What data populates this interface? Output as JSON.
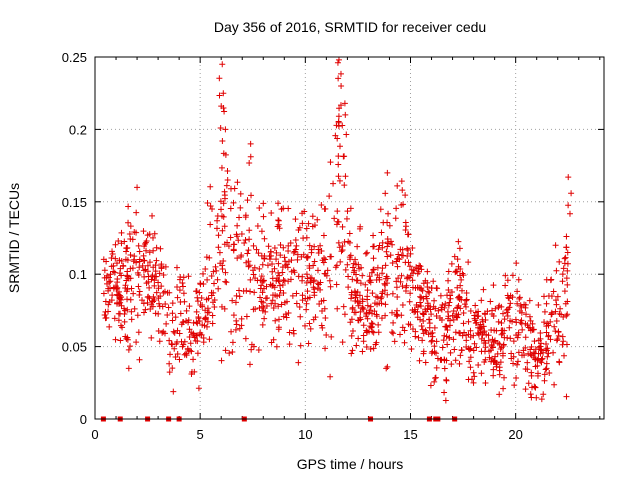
{
  "chart_data": {
    "type": "scatter",
    "title": "Day 356 of 2016, SRMTID for receiver cedu",
    "xlabel": "GPS time / hours",
    "ylabel": "SRMTID / TECUs",
    "xlim": [
      0,
      24.2
    ],
    "ylim": [
      0,
      0.25
    ],
    "xticks": [
      0,
      5,
      10,
      15,
      20
    ],
    "yticks": [
      0,
      0.05,
      0.1,
      0.15,
      0.2,
      0.25
    ],
    "xtick_labels": [
      "0",
      "5",
      "10",
      "15",
      "20"
    ],
    "ytick_labels": [
      "0",
      "0.05",
      "0.1",
      "0.15",
      "0.2",
      "0.25"
    ],
    "grid": true,
    "marker": "+",
    "series_color": "#e00000",
    "zero_values_at_hours": [
      0.4,
      1.2,
      2.5,
      3.5,
      4.0,
      7.1,
      13.1,
      15.9,
      16.2,
      16.3,
      17.1
    ],
    "envelope": [
      {
        "t": 0.5,
        "mean": 0.09,
        "spread": 0.025
      },
      {
        "t": 1.5,
        "mean": 0.095,
        "spread": 0.035
      },
      {
        "t": 2.0,
        "mean": 0.1,
        "spread": 0.04
      },
      {
        "t": 2.8,
        "mean": 0.1,
        "spread": 0.03
      },
      {
        "t": 3.3,
        "mean": 0.085,
        "spread": 0.025
      },
      {
        "t": 3.7,
        "mean": 0.055,
        "spread": 0.03
      },
      {
        "t": 4.2,
        "mean": 0.075,
        "spread": 0.03
      },
      {
        "t": 4.6,
        "mean": 0.05,
        "spread": 0.02
      },
      {
        "t": 5.2,
        "mean": 0.09,
        "spread": 0.035
      },
      {
        "t": 5.8,
        "mean": 0.11,
        "spread": 0.05
      },
      {
        "t": 6.3,
        "mean": 0.12,
        "spread": 0.06
      },
      {
        "t": 7.0,
        "mean": 0.1,
        "spread": 0.05
      },
      {
        "t": 8.0,
        "mean": 0.09,
        "spread": 0.04
      },
      {
        "t": 9.0,
        "mean": 0.1,
        "spread": 0.04
      },
      {
        "t": 10.0,
        "mean": 0.1,
        "spread": 0.035
      },
      {
        "t": 11.0,
        "mean": 0.09,
        "spread": 0.035
      },
      {
        "t": 11.6,
        "mean": 0.16,
        "spread": 0.08
      },
      {
        "t": 12.3,
        "mean": 0.09,
        "spread": 0.03
      },
      {
        "t": 13.0,
        "mean": 0.08,
        "spread": 0.03
      },
      {
        "t": 14.0,
        "mean": 0.1,
        "spread": 0.04
      },
      {
        "t": 14.8,
        "mean": 0.1,
        "spread": 0.045
      },
      {
        "t": 15.5,
        "mean": 0.075,
        "spread": 0.03
      },
      {
        "t": 16.5,
        "mean": 0.06,
        "spread": 0.03
      },
      {
        "t": 17.2,
        "mean": 0.08,
        "spread": 0.04
      },
      {
        "t": 18.0,
        "mean": 0.055,
        "spread": 0.025
      },
      {
        "t": 19.0,
        "mean": 0.06,
        "spread": 0.025
      },
      {
        "t": 20.0,
        "mean": 0.065,
        "spread": 0.03
      },
      {
        "t": 21.0,
        "mean": 0.04,
        "spread": 0.025
      },
      {
        "t": 22.0,
        "mean": 0.07,
        "spread": 0.04
      },
      {
        "t": 22.7,
        "mean": 0.09,
        "spread": 0.05
      }
    ],
    "peaks": [
      {
        "t": 6.05,
        "value": 0.245
      },
      {
        "t": 6.1,
        "value": 0.225
      },
      {
        "t": 6.2,
        "value": 0.2
      },
      {
        "t": 7.4,
        "value": 0.19
      },
      {
        "t": 11.55,
        "value": 0.246
      },
      {
        "t": 11.7,
        "value": 0.23
      },
      {
        "t": 11.9,
        "value": 0.21
      },
      {
        "t": 22.5,
        "value": 0.167
      },
      {
        "t": 2.0,
        "value": 0.16
      },
      {
        "t": 13.9,
        "value": 0.17
      }
    ]
  }
}
